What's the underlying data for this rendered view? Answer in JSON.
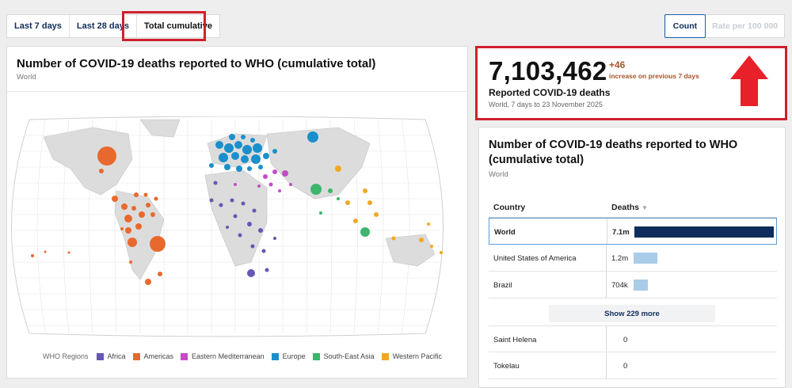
{
  "tabs": [
    "Last 7 days",
    "Last 28 days",
    "Total cumulative"
  ],
  "toggle": {
    "count": "Count",
    "rate": "Rate per 100 000"
  },
  "map_card": {
    "title": "Number of COVID-19 deaths reported to WHO (cumulative total)",
    "subtitle": "World"
  },
  "legend": {
    "label": "WHO Regions",
    "items": [
      {
        "name": "Africa",
        "color": "#6557b5"
      },
      {
        "name": "Americas",
        "color": "#e8692e"
      },
      {
        "name": "Eastern Mediterranean",
        "color": "#c34dc6"
      },
      {
        "name": "Europe",
        "color": "#1b8fcb"
      },
      {
        "name": "South-East Asia",
        "color": "#3cb56d"
      },
      {
        "name": "Western Pacific",
        "color": "#f0a824"
      }
    ]
  },
  "stat": {
    "value": "7,103,462",
    "delta": "+46",
    "delta_label": "increase on previous 7 days",
    "label": "Reported COVID-19 deaths",
    "sub": "World, 7 days to 23 November 2025"
  },
  "table_card": {
    "title": "Number of COVID-19 deaths reported to WHO (cumulative total)",
    "subtitle": "World",
    "col_country": "Country",
    "col_deaths": "Deaths",
    "rows": [
      {
        "country": "World",
        "value": "7.1m",
        "share": 1.0,
        "color": "#0f2d5c"
      },
      {
        "country": "United States of America",
        "value": "1.2m",
        "share": 0.17,
        "color": "#a9cde8"
      },
      {
        "country": "Brazil",
        "value": "704k",
        "share": 0.1,
        "color": "#a9cde8"
      }
    ],
    "show_more": "Show 229 more",
    "more_rows": [
      {
        "country": "Saint Helena",
        "value": "0"
      },
      {
        "country": "Tokelau",
        "value": "0"
      }
    ]
  }
}
